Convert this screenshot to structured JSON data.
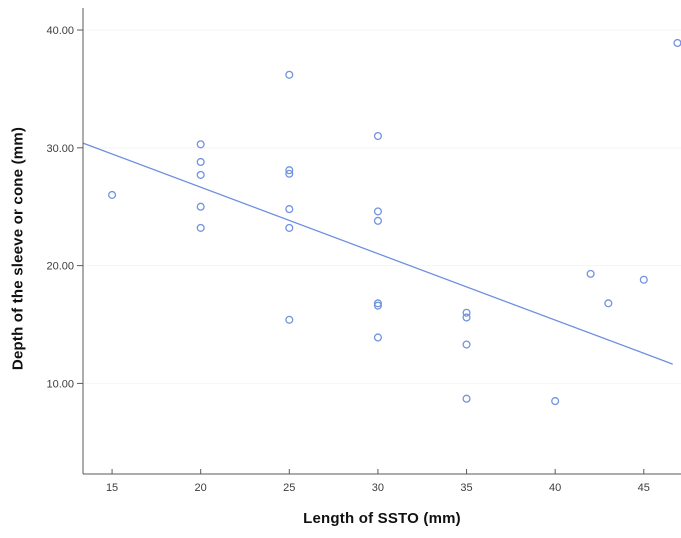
{
  "chart_data": {
    "type": "scatter",
    "title": "",
    "xlabel": "Length of SSTO (mm)",
    "ylabel": "Depth of the sleeve or cone (mm)",
    "x_ticks": [
      15,
      20,
      25,
      30,
      35,
      40,
      45
    ],
    "y_ticks": [
      "10.00",
      "20.00",
      "30.00",
      "40.00"
    ],
    "xlim": [
      13.36,
      47.1
    ],
    "ylim": [
      2.31,
      41.87
    ],
    "grid": "faint-horizontal",
    "legend_position": "none",
    "marker_shape": "open-circle",
    "points": [
      [
        15,
        26.0
      ],
      [
        20,
        30.3
      ],
      [
        20,
        28.8
      ],
      [
        20,
        27.7
      ],
      [
        20,
        25.0
      ],
      [
        20,
        23.2
      ],
      [
        25,
        36.2
      ],
      [
        25,
        28.1
      ],
      [
        25,
        27.8
      ],
      [
        25,
        24.8
      ],
      [
        25,
        23.2
      ],
      [
        25,
        15.4
      ],
      [
        30,
        31.0
      ],
      [
        30,
        24.6
      ],
      [
        30,
        23.8
      ],
      [
        30,
        16.8
      ],
      [
        30,
        16.6
      ],
      [
        30,
        13.9
      ],
      [
        35,
        16.0
      ],
      [
        35,
        15.6
      ],
      [
        35,
        13.3
      ],
      [
        35,
        8.7
      ],
      [
        40,
        8.5
      ],
      [
        42,
        19.3
      ],
      [
        43,
        16.8
      ],
      [
        45,
        18.8
      ],
      [
        46.9,
        38.9
      ]
    ],
    "fit_line": {
      "x1": 13.36,
      "y1": 30.4,
      "x2": 46.63,
      "y2": 11.64
    },
    "colors": {
      "marker": "#7293dd",
      "fit_line": "#6e8fdf",
      "axis": "#5a5a5a",
      "tick_label": "#3d3d3d",
      "grid": "#f4f4f4",
      "title": "#111111"
    }
  }
}
